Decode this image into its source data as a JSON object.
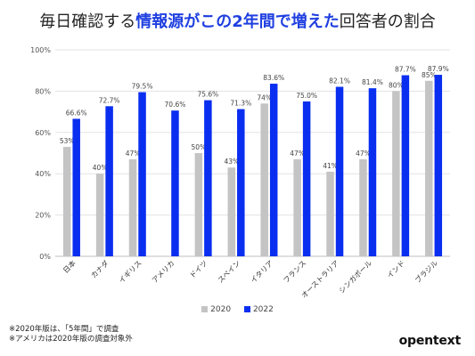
{
  "title": {
    "part1": "毎日確認する",
    "highlight": "情報源がこの2年間で増えた",
    "part2": "回答者の割合"
  },
  "chart_data": {
    "type": "bar",
    "categories": [
      "日本",
      "カナダ",
      "イギリス",
      "アメリカ",
      "ドイツ",
      "スペイン",
      "イタリア",
      "フランス",
      "オーストラリア",
      "シンガポール",
      "インド",
      "ブラジル"
    ],
    "series": [
      {
        "name": "2020",
        "color": "#c4c4c4",
        "values": [
          53,
          40,
          47,
          null,
          50,
          43,
          74,
          47,
          41,
          47,
          80,
          85
        ],
        "labels": [
          "53%",
          "40%",
          "47%",
          "",
          "50%",
          "43%",
          "74%",
          "47%",
          "41%",
          "47%",
          "80%",
          "85%"
        ]
      },
      {
        "name": "2022",
        "color": "#0a2ef0",
        "values": [
          66.6,
          72.7,
          79.5,
          70.6,
          75.6,
          71.3,
          83.6,
          75.0,
          82.1,
          81.4,
          87.7,
          87.9
        ],
        "labels": [
          "66.6%",
          "72.7%",
          "79.5%",
          "70.6%",
          "75.6%",
          "71.3%",
          "83.6%",
          "75.0%",
          "82.1%",
          "81.4%",
          "87.7%",
          "87.9%"
        ]
      }
    ],
    "ylim": [
      0,
      100
    ],
    "yticks": [
      "0%",
      "20%",
      "40%",
      "60%",
      "80%",
      "100%"
    ],
    "grid": true,
    "legend_position": "bottom"
  },
  "notes": [
    "※2020年版は、「5年間」で調査",
    "※アメリカは2020年版の調査対象外"
  ],
  "logo": "opentext"
}
